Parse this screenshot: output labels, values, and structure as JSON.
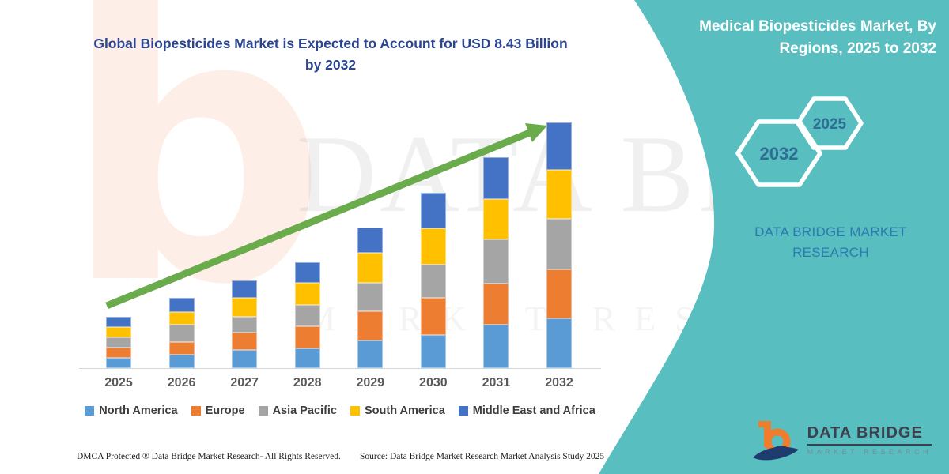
{
  "title": "Global Biopesticides Market is Expected to Account for USD 8.43 Billion by 2032",
  "watermark": {
    "letter": "b",
    "text_large": "DATA BRI",
    "text_small": "MARKET RESEARCH"
  },
  "chart_data": {
    "type": "bar",
    "stacked": true,
    "title": "Global Biopesticides Market is Expected to Account for USD 8.43 Billion by 2032",
    "unit": "USD Billion",
    "categories": [
      "2025",
      "2026",
      "2027",
      "2028",
      "2029",
      "2030",
      "2031",
      "2032"
    ],
    "series": [
      {
        "name": "North America",
        "color": "#5B9BD5",
        "values": [
          0.34,
          0.47,
          0.62,
          0.68,
          0.95,
          1.15,
          1.49,
          1.71
        ]
      },
      {
        "name": "Europe",
        "color": "#ED7D31",
        "values": [
          0.36,
          0.43,
          0.6,
          0.75,
          0.99,
          1.25,
          1.4,
          1.68
        ]
      },
      {
        "name": "Asia Pacific",
        "color": "#A5A5A5",
        "values": [
          0.36,
          0.59,
          0.54,
          0.74,
          0.98,
          1.15,
          1.52,
          1.72
        ]
      },
      {
        "name": "South America",
        "color": "#FFC000",
        "values": [
          0.36,
          0.43,
          0.66,
          0.77,
          1.03,
          1.26,
          1.4,
          1.69
        ]
      },
      {
        "name": "Middle East and Africa",
        "color": "#4472C4",
        "values": [
          0.34,
          0.48,
          0.58,
          0.68,
          0.87,
          1.21,
          1.43,
          1.63
        ]
      }
    ],
    "totals": [
      1.76,
      2.4,
      3.0,
      3.62,
      4.82,
      6.02,
      7.24,
      8.43
    ],
    "xlabel": "",
    "ylabel": "",
    "ylim": [
      0,
      8.43
    ],
    "grid": false,
    "y_axis_visible": false,
    "legend_position": "bottom",
    "trend_arrow": {
      "present": true,
      "color": "#6aab4c",
      "direction": "up-right"
    }
  },
  "panel": {
    "bg_color": "#58bec0",
    "heading": "Medical Biopesticides Market, By Regions, 2025 to 2032",
    "hexagon_large_label": "2032",
    "hexagon_small_label": "2025",
    "hex_text_color": "#2f6d94",
    "brand_text": "DATA BRIDGE MARKET RESEARCH"
  },
  "logo": {
    "title": "DATA BRIDGE",
    "subtitle": "MARKET RESEARCH",
    "mark_orange": "#ee7e2d",
    "mark_navy": "#1e3c6e"
  },
  "footer": {
    "dmca": "DMCA Protected ® Data Bridge Market Research-  All Rights Reserved.",
    "source": "Source: Data Bridge Market Research  Market Analysis Study 2025"
  }
}
